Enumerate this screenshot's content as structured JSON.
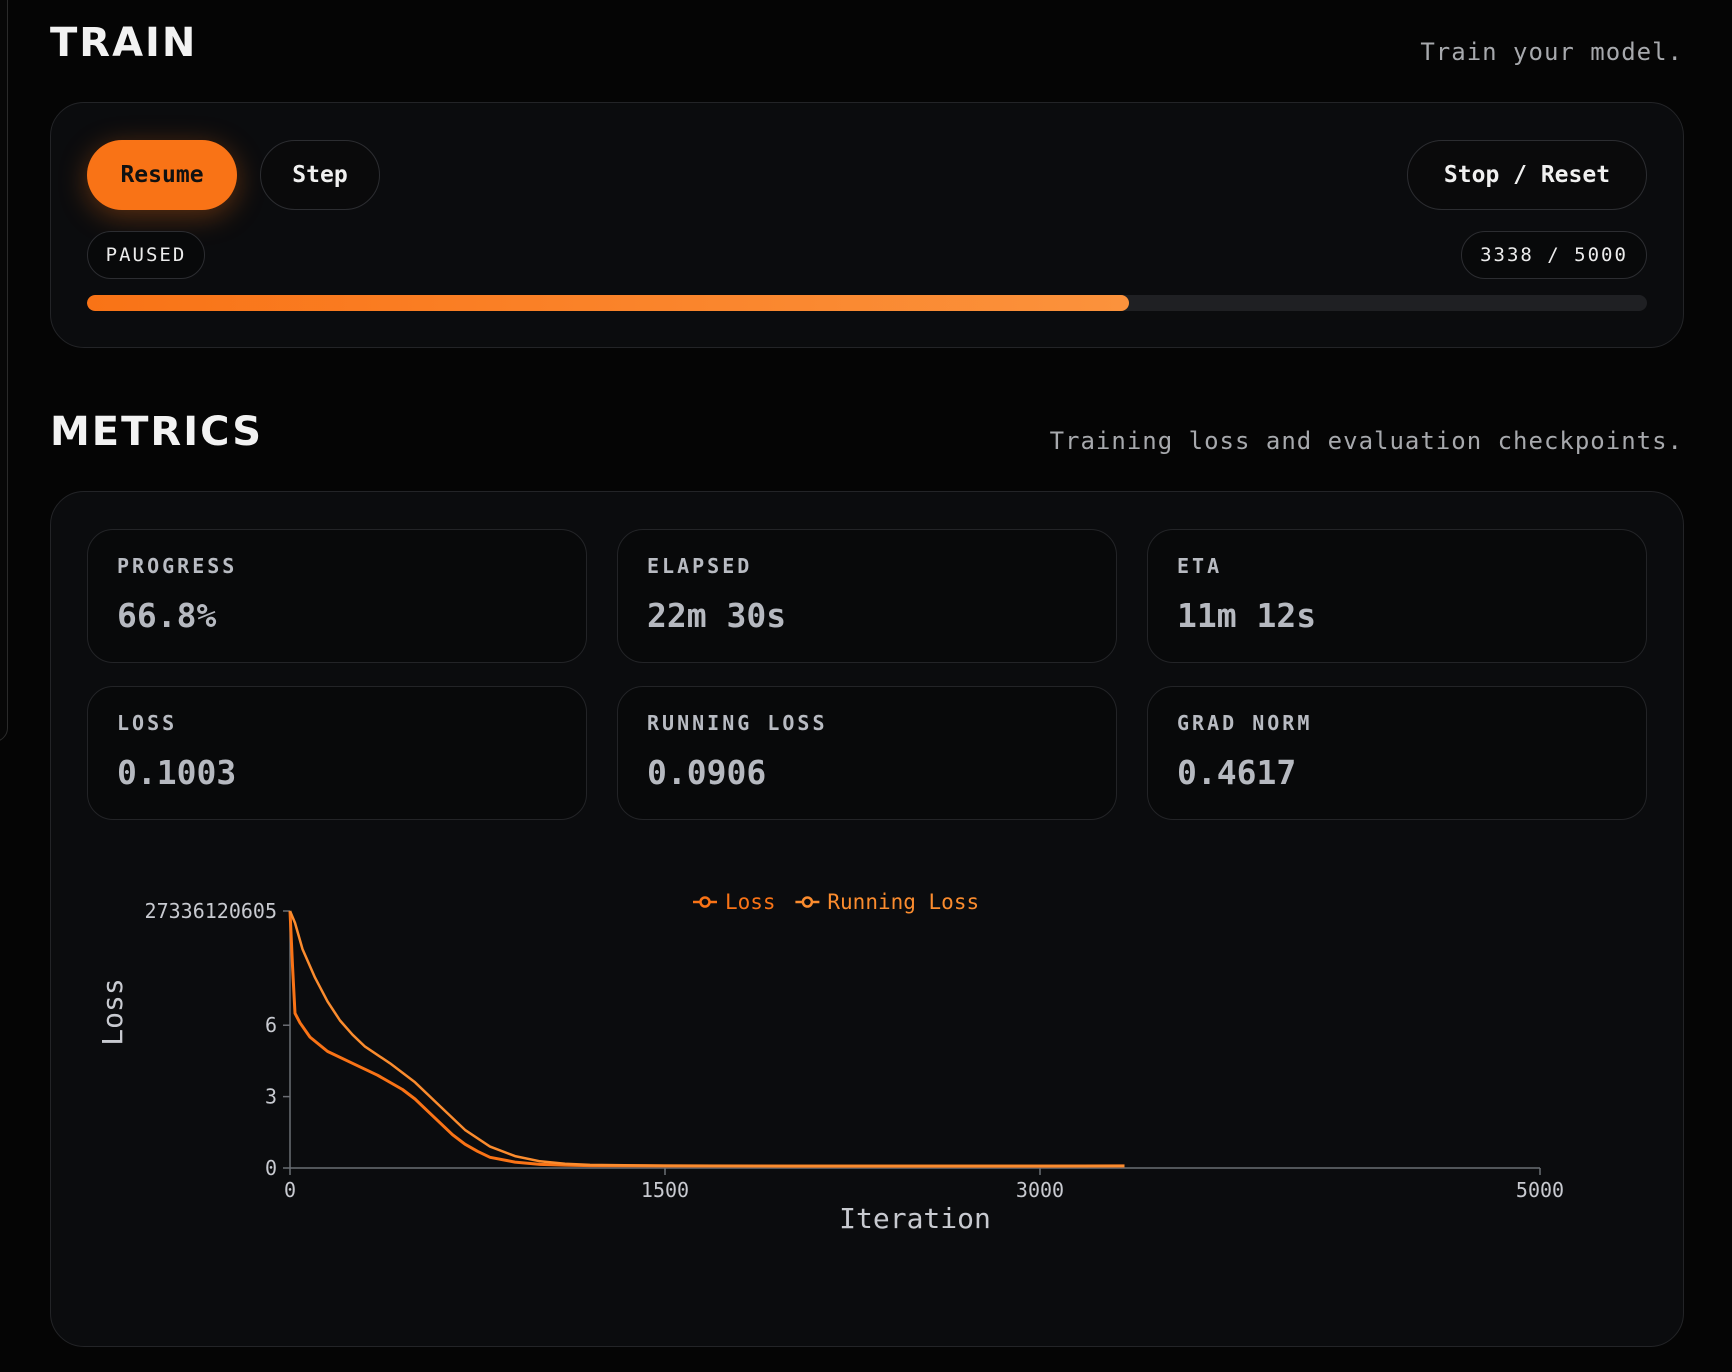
{
  "train": {
    "title": "TRAIN",
    "description": "Train your model.",
    "resume_label": "Resume",
    "step_label": "Step",
    "stop_reset_label": "Stop / Reset",
    "status": "PAUSED",
    "counter": "3338 / 5000",
    "progress_fraction": 0.668
  },
  "metrics": {
    "title": "METRICS",
    "description": "Training loss and evaluation checkpoints.",
    "cards": [
      {
        "label": "PROGRESS",
        "value": "66.8%"
      },
      {
        "label": "ELAPSED",
        "value": "22m 30s"
      },
      {
        "label": "ETA",
        "value": "11m 12s"
      },
      {
        "label": "LOSS",
        "value": "0.1003"
      },
      {
        "label": "RUNNING LOSS",
        "value": "0.0906"
      },
      {
        "label": "GRAD NORM",
        "value": "0.4617"
      }
    ]
  },
  "colors": {
    "accent": "#f97316",
    "loss": "#f97316",
    "running_loss": "#fb8c2e"
  },
  "chart_data": {
    "type": "line",
    "xlabel": "Iteration",
    "ylabel": "Loss",
    "x_ticks": [
      0,
      1500,
      3000,
      5000
    ],
    "y_ticks": [
      0,
      3,
      6
    ],
    "y_top_label": "27336120605",
    "xlim": [
      0,
      5000
    ],
    "legend": [
      "Loss",
      "Running Loss"
    ],
    "legend_position": "top-center",
    "series": [
      {
        "name": "Loss",
        "x": [
          0,
          10,
          20,
          40,
          80,
          150,
          250,
          350,
          450,
          500,
          550,
          600,
          650,
          700,
          750,
          800,
          900,
          1000,
          1100,
          1200,
          1500,
          2000,
          2500,
          3000,
          3338
        ],
        "y": [
          10.8,
          8.5,
          6.5,
          6.1,
          5.5,
          4.9,
          4.4,
          3.9,
          3.3,
          2.9,
          2.4,
          1.9,
          1.4,
          1.0,
          0.7,
          0.45,
          0.25,
          0.15,
          0.12,
          0.1,
          0.09,
          0.08,
          0.08,
          0.08,
          0.09
        ]
      },
      {
        "name": "Running Loss",
        "x": [
          0,
          20,
          50,
          100,
          150,
          200,
          250,
          300,
          400,
          500,
          600,
          700,
          800,
          900,
          1000,
          1100,
          1200,
          1500,
          2000,
          2500,
          3000,
          3338
        ],
        "y": [
          10.8,
          10.3,
          9.2,
          8.0,
          7.0,
          6.2,
          5.6,
          5.1,
          4.4,
          3.6,
          2.6,
          1.6,
          0.9,
          0.5,
          0.28,
          0.18,
          0.13,
          0.1,
          0.09,
          0.09,
          0.09,
          0.09
        ]
      }
    ]
  }
}
